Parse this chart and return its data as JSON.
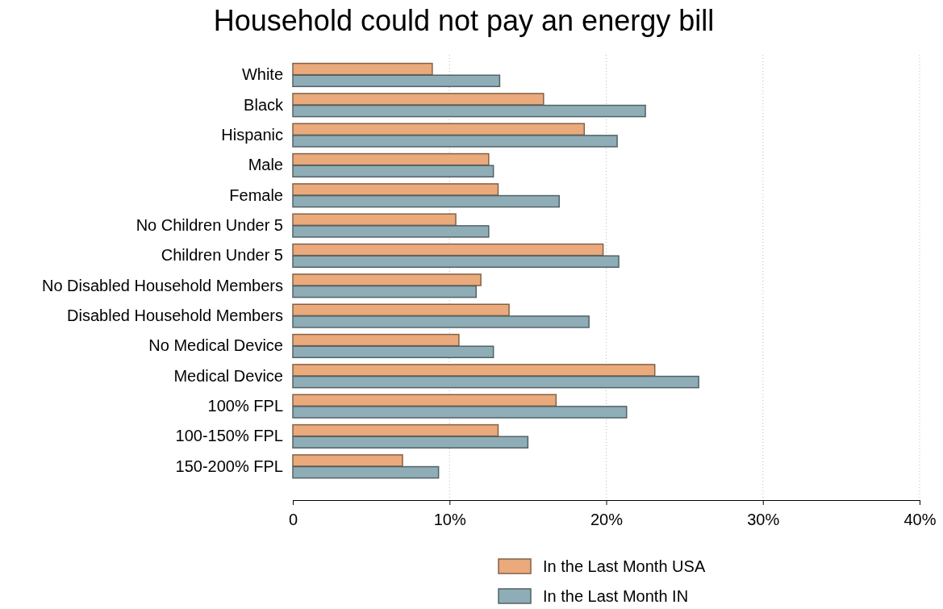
{
  "chart_data": {
    "type": "bar",
    "orientation": "horizontal",
    "title": "Household could not pay an energy bill",
    "categories": [
      "White",
      "Black",
      "Hispanic",
      "Male",
      "Female",
      "No Children Under 5",
      "Children Under 5",
      "No Disabled Household Members",
      "Disabled Household Members",
      "No Medical Device",
      "Medical Device",
      "100% FPL",
      "100-150% FPL",
      "150-200% FPL"
    ],
    "series": [
      {
        "name": "In the Last Month USA",
        "color": "#eaaa7c",
        "values": [
          8.9,
          16.0,
          18.6,
          12.5,
          13.1,
          10.4,
          19.8,
          12.0,
          13.8,
          10.6,
          23.1,
          16.8,
          13.1,
          7.0
        ]
      },
      {
        "name": "In the Last Month IN",
        "color": "#8fadb6",
        "values": [
          13.2,
          22.5,
          20.7,
          12.8,
          17.0,
          12.5,
          20.8,
          11.7,
          18.9,
          12.8,
          25.9,
          21.3,
          15.0,
          9.3
        ]
      }
    ],
    "xlim": [
      0,
      40
    ],
    "xticks": [
      0,
      {
        "value": 10,
        "label": "10%"
      },
      {
        "value": 20,
        "label": "20%"
      },
      {
        "value": 30,
        "label": "30%"
      },
      {
        "value": 40,
        "label": "40%"
      }
    ],
    "grid": "x",
    "legend": "bottom"
  }
}
